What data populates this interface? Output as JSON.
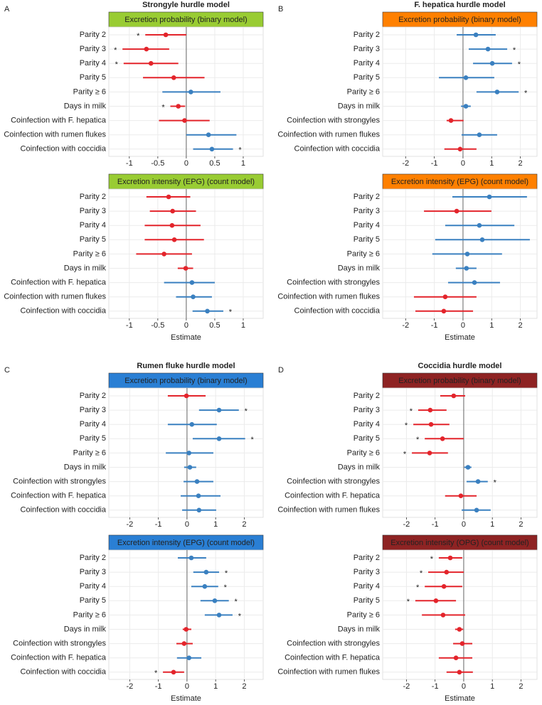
{
  "chart_data": [
    {
      "type": "forest",
      "label": "A",
      "title": "Strongyle hurdle model",
      "xlabel": "Estimate",
      "xlim": [
        -1.36,
        1.35
      ],
      "xticks": [
        -1,
        -0.5,
        0,
        0.5,
        1
      ],
      "grid": true,
      "colors": {
        "negative": "#e3242b",
        "positive": "#3a80c0"
      },
      "subplots": [
        {
          "header": "Excretion probability (binary model)",
          "header_color": "#99cc33",
          "header_text_color": "#111111",
          "categories": [
            "Parity 2",
            "Parity 3",
            "Parity 4",
            "Parity 5",
            "Parity ≥ 6",
            "Days in milk",
            "Coinfection with F. hepatica",
            "Coinfection with rumen flukes",
            "Coinfection with coccidia"
          ],
          "estimate": [
            -0.36,
            -0.7,
            -0.62,
            -0.22,
            0.08,
            -0.14,
            -0.03,
            0.39,
            0.45
          ],
          "lower": [
            -0.72,
            -1.12,
            -1.1,
            -0.76,
            -0.42,
            -0.28,
            -0.48,
            0,
            0.12
          ],
          "upper": [
            0,
            -0.3,
            -0.14,
            0.32,
            0.6,
            -0.02,
            0.41,
            0.88,
            0.82
          ],
          "stars": [
            "*",
            "*",
            "*",
            null,
            null,
            "*",
            null,
            null,
            "*"
          ]
        },
        {
          "header": "Excretion intensity (EPG) (count model)",
          "header_color": "#99cc33",
          "header_text_color": "#111111",
          "categories": [
            "Parity 2",
            "Parity 3",
            "Parity 4",
            "Parity 5",
            "Parity ≥ 6",
            "Days in milk",
            "Coinfection with F. hepatica",
            "Coinfection with rumen flukes",
            "Coinfection with coccidia"
          ],
          "estimate": [
            -0.31,
            -0.24,
            -0.25,
            -0.21,
            -0.39,
            -0.01,
            0.1,
            0.12,
            0.37
          ],
          "lower": [
            -0.7,
            -0.64,
            -0.73,
            -0.73,
            -0.88,
            -0.15,
            -0.39,
            -0.18,
            0.11
          ],
          "upper": [
            0.07,
            0.17,
            0.25,
            0.31,
            0.1,
            0.12,
            0.5,
            0.45,
            0.65
          ],
          "stars": [
            null,
            null,
            null,
            null,
            null,
            null,
            null,
            null,
            "*"
          ]
        }
      ]
    },
    {
      "type": "forest",
      "label": "B",
      "title": "F. hepatica hurdle model",
      "xlabel": "Estimate",
      "xlim": [
        -2.8,
        2.58
      ],
      "xticks": [
        -2,
        -1,
        0,
        1,
        2
      ],
      "grid": true,
      "colors": {
        "negative": "#e3242b",
        "positive": "#3a80c0"
      },
      "subplots": [
        {
          "header": "Excretion probability (binary model)",
          "header_color": "#ff8000",
          "header_text_color": "#111111",
          "categories": [
            "Parity 2",
            "Parity 3",
            "Parity 4",
            "Parity 5",
            "Parity ≥ 6",
            "Days in milk",
            "Coinfection with strongyles",
            "Coinfection with rumen flukes",
            "Coinfection with coccidia"
          ],
          "estimate": [
            0.45,
            0.87,
            1.02,
            0.1,
            1.19,
            0.1,
            -0.42,
            0.57,
            -0.1
          ],
          "lower": [
            -0.22,
            0.2,
            0.35,
            -0.84,
            0.47,
            -0.07,
            -0.57,
            -0.05,
            -0.65
          ],
          "upper": [
            1.14,
            1.54,
            1.71,
            1.09,
            1.94,
            0.27,
            0.02,
            1.19,
            0.47
          ],
          "stars": [
            null,
            "*",
            "*",
            null,
            "*",
            null,
            null,
            null,
            null
          ]
        },
        {
          "header": "Excretion intensity (EPG) (count model)",
          "header_color": "#ff8000",
          "header_text_color": "#111111",
          "categories": [
            "Parity 2",
            "Parity 3",
            "Parity 4",
            "Parity 5",
            "Parity ≥ 6",
            "Days in milk",
            "Coinfection with strongyles",
            "Coinfection with rumen flukes",
            "Coinfection with coccidia"
          ],
          "estimate": [
            0.92,
            -0.22,
            0.57,
            0.67,
            0.15,
            0.12,
            0.4,
            -0.62,
            -0.67
          ],
          "lower": [
            -0.37,
            -1.36,
            -0.62,
            -0.97,
            -1.07,
            -0.25,
            -0.52,
            -1.71,
            -1.66
          ],
          "upper": [
            2.23,
            0.99,
            1.79,
            2.33,
            1.36,
            0.47,
            1.29,
            0.47,
            0.35
          ],
          "stars": [
            null,
            null,
            null,
            null,
            null,
            null,
            null,
            null,
            null
          ]
        }
      ]
    },
    {
      "type": "forest",
      "label": "C",
      "title": "Rumen fluke hurdle model",
      "xlabel": "Estimate",
      "xlim": [
        -2.73,
        2.66
      ],
      "xticks": [
        -2,
        -1,
        0,
        1,
        2
      ],
      "grid": true,
      "colors": {
        "negative": "#e3242b",
        "positive": "#3a80c0"
      },
      "subplots": [
        {
          "header": "Excretion probability (binary model)",
          "header_color": "#2a7fd4",
          "header_text_color": "#ffffff",
          "categories": [
            "Parity 2",
            "Parity 3",
            "Parity 4",
            "Parity 5",
            "Parity ≥ 6",
            "Days in milk",
            "Coinfection with strongyles",
            "Coinfection with F. hepatica",
            "Coinfection with coccidia"
          ],
          "estimate": [
            -0.02,
            1.12,
            0.17,
            1.12,
            0.07,
            0.1,
            0.35,
            0.4,
            0.42
          ],
          "lower": [
            -0.67,
            0.42,
            -0.67,
            0.2,
            -0.74,
            -0.1,
            -0.12,
            -0.22,
            -0.17
          ],
          "upper": [
            0.65,
            1.81,
            1.04,
            2.03,
            0.92,
            0.32,
            0.92,
            1.17,
            1.02
          ],
          "stars": [
            null,
            "*",
            null,
            "*",
            null,
            null,
            null,
            null,
            null
          ]
        },
        {
          "header": "Excretion intensity (EPG) (count model)",
          "header_color": "#2a7fd4",
          "header_text_color": "#ffffff",
          "categories": [
            "Parity 2",
            "Parity 3",
            "Parity 4",
            "Parity 5",
            "Parity ≥ 6",
            "Days in milk",
            "Coinfection with strongyles",
            "Coinfection with F. hepatica",
            "Coinfection with coccidia"
          ],
          "estimate": [
            0.15,
            0.67,
            0.62,
            0.97,
            1.12,
            -0.03,
            -0.1,
            0.07,
            -0.47
          ],
          "lower": [
            -0.32,
            0.22,
            0.15,
            0.47,
            0.62,
            -0.15,
            -0.37,
            -0.35,
            -0.84
          ],
          "upper": [
            0.67,
            1.12,
            1.09,
            1.46,
            1.59,
            0.15,
            0.2,
            0.5,
            -0.1
          ],
          "stars": [
            null,
            "*",
            "*",
            "*",
            "*",
            null,
            null,
            null,
            "*"
          ]
        }
      ]
    },
    {
      "type": "forest",
      "label": "D",
      "title": "Coccidia hurdle model",
      "xlabel": "Estimate",
      "xlim": [
        -2.83,
        2.56
      ],
      "xticks": [
        -2,
        -1,
        0,
        1,
        2
      ],
      "grid": true,
      "colors": {
        "negative": "#e3242b",
        "positive": "#3a80c0"
      },
      "subplots": [
        {
          "header": "Excretion probability (binary model)",
          "header_color": "#8e2323",
          "header_text_color": "#ffffff",
          "categories": [
            "Parity 2",
            "Parity 3",
            "Parity 4",
            "Parity 5",
            "Parity ≥ 6",
            "Days in milk",
            "Coinfection with strongyles",
            "Coinfection with F. hepatica",
            "Coinfection with rumen flukes"
          ],
          "estimate": [
            -0.35,
            -1.17,
            -1.14,
            -0.74,
            -1.19,
            0.15,
            0.5,
            -0.1,
            0.45
          ],
          "lower": [
            -0.82,
            -1.59,
            -1.76,
            -1.36,
            -1.81,
            0.02,
            0.1,
            -0.65,
            -0.07
          ],
          "upper": [
            0.05,
            -0.6,
            -0.5,
            0,
            -0.55,
            0.27,
            0.84,
            0.45,
            0.94
          ],
          "stars": [
            null,
            "*",
            "*",
            "*",
            "*",
            null,
            "*",
            null,
            null
          ]
        },
        {
          "header": "Excretion intensity (OPG) (count model)",
          "header_color": "#8e2323",
          "header_text_color": "#ffffff",
          "categories": [
            "Parity 2",
            "Parity 3",
            "Parity 4",
            "Parity 5",
            "Parity ≥ 6",
            "Days in milk",
            "Coinfection with strongyles",
            "Coinfection with F. hepatica",
            "Coinfection with rumen flukes"
          ],
          "estimate": [
            -0.47,
            -0.6,
            -0.69,
            -0.97,
            -0.72,
            -0.15,
            -0.05,
            -0.27,
            -0.15
          ],
          "lower": [
            -0.87,
            -1.24,
            -1.36,
            -1.69,
            -1.46,
            -0.3,
            -0.37,
            -0.87,
            -0.6
          ],
          "upper": [
            -0.05,
            0,
            -0.05,
            -0.27,
            0.05,
            -0.02,
            0.3,
            0.3,
            0.32
          ],
          "stars": [
            "*",
            "*",
            "*",
            "*",
            null,
            null,
            null,
            null,
            null
          ]
        }
      ]
    }
  ]
}
